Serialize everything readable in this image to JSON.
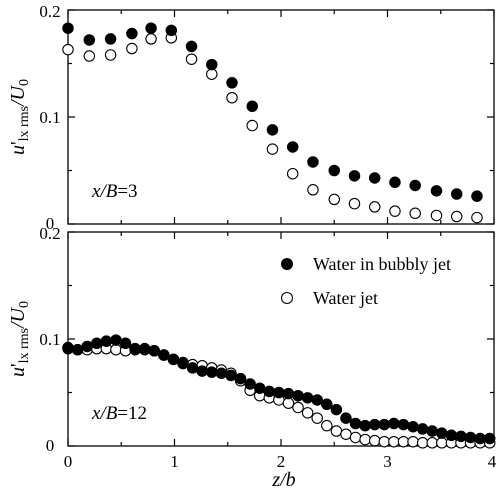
{
  "chart_data": [
    {
      "type": "scatter",
      "panel": "top",
      "annotation": "x/B=3",
      "ylabel": "u'lx rms/U0",
      "xlabel": "",
      "xlim": [
        0,
        4
      ],
      "ylim": [
        0,
        0.2
      ],
      "y_ticks": [
        "0",
        "0.1",
        "0.2"
      ],
      "x_ticks": [],
      "series": [
        {
          "name": "Water in bubbly jet",
          "marker": "filled",
          "x": [
            0.0,
            0.2,
            0.4,
            0.6,
            0.78,
            0.97,
            1.16,
            1.35,
            1.54,
            1.73,
            1.92,
            2.11,
            2.3,
            2.5,
            2.69,
            2.88,
            3.07,
            3.26,
            3.46,
            3.65,
            3.84
          ],
          "y": [
            0.183,
            0.172,
            0.173,
            0.178,
            0.183,
            0.181,
            0.166,
            0.149,
            0.132,
            0.11,
            0.088,
            0.072,
            0.058,
            0.05,
            0.045,
            0.043,
            0.039,
            0.036,
            0.031,
            0.028,
            0.026
          ]
        },
        {
          "name": "Water jet",
          "marker": "open",
          "x": [
            0.0,
            0.2,
            0.4,
            0.6,
            0.78,
            0.97,
            1.16,
            1.35,
            1.54,
            1.73,
            1.92,
            2.11,
            2.3,
            2.5,
            2.69,
            2.88,
            3.07,
            3.26,
            3.46,
            3.65,
            3.84
          ],
          "y": [
            0.163,
            0.157,
            0.158,
            0.164,
            0.173,
            0.174,
            0.154,
            0.14,
            0.118,
            0.092,
            0.07,
            0.047,
            0.032,
            0.023,
            0.019,
            0.016,
            0.012,
            0.01,
            0.008,
            0.007,
            0.006
          ]
        }
      ]
    },
    {
      "type": "scatter",
      "panel": "bottom",
      "annotation": "x/B=12",
      "ylabel": "u'lx rms/U0",
      "xlabel": "z/b",
      "xlim": [
        0,
        4
      ],
      "ylim": [
        0,
        0.2
      ],
      "y_ticks": [
        "0",
        "0.1",
        "0.2"
      ],
      "x_ticks": [
        "0",
        "1",
        "2",
        "3",
        "4"
      ],
      "legend_position": "top-right",
      "series": [
        {
          "name": "Water in bubbly jet",
          "marker": "filled",
          "x": [
            0.0,
            0.09,
            0.18,
            0.27,
            0.36,
            0.45,
            0.54,
            0.63,
            0.72,
            0.81,
            0.9,
            0.99,
            1.08,
            1.17,
            1.26,
            1.35,
            1.44,
            1.53,
            1.62,
            1.71,
            1.8,
            1.89,
            1.98,
            2.07,
            2.16,
            2.25,
            2.34,
            2.43,
            2.52,
            2.61,
            2.7,
            2.79,
            2.88,
            2.97,
            3.06,
            3.15,
            3.24,
            3.33,
            3.42,
            3.51,
            3.6,
            3.69,
            3.78,
            3.87,
            3.96
          ],
          "y": [
            0.091,
            0.09,
            0.093,
            0.096,
            0.098,
            0.099,
            0.096,
            0.091,
            0.09,
            0.089,
            0.085,
            0.081,
            0.077,
            0.073,
            0.07,
            0.069,
            0.068,
            0.066,
            0.063,
            0.058,
            0.054,
            0.051,
            0.05,
            0.049,
            0.047,
            0.045,
            0.043,
            0.039,
            0.034,
            0.026,
            0.021,
            0.019,
            0.02,
            0.02,
            0.021,
            0.02,
            0.018,
            0.016,
            0.014,
            0.012,
            0.01,
            0.009,
            0.008,
            0.007,
            0.007
          ]
        },
        {
          "name": "Water jet",
          "marker": "open",
          "x": [
            0.0,
            0.09,
            0.18,
            0.27,
            0.36,
            0.45,
            0.54,
            0.63,
            0.72,
            0.81,
            0.9,
            0.99,
            1.08,
            1.17,
            1.26,
            1.35,
            1.44,
            1.53,
            1.62,
            1.71,
            1.8,
            1.89,
            1.98,
            2.07,
            2.16,
            2.25,
            2.34,
            2.43,
            2.52,
            2.61,
            2.7,
            2.79,
            2.88,
            2.97,
            3.06,
            3.15,
            3.24,
            3.33,
            3.42,
            3.51,
            3.6,
            3.69,
            3.78,
            3.87,
            3.96
          ],
          "y": [
            0.092,
            0.09,
            0.09,
            0.091,
            0.091,
            0.09,
            0.089,
            0.09,
            0.091,
            0.089,
            0.085,
            0.081,
            0.078,
            0.076,
            0.075,
            0.073,
            0.071,
            0.068,
            0.061,
            0.052,
            0.047,
            0.045,
            0.043,
            0.04,
            0.036,
            0.031,
            0.026,
            0.019,
            0.014,
            0.011,
            0.008,
            0.006,
            0.005,
            0.004,
            0.004,
            0.004,
            0.004,
            0.003,
            0.003,
            0.003,
            0.003,
            0.003,
            0.003,
            0.003,
            0.003
          ]
        }
      ]
    }
  ]
}
